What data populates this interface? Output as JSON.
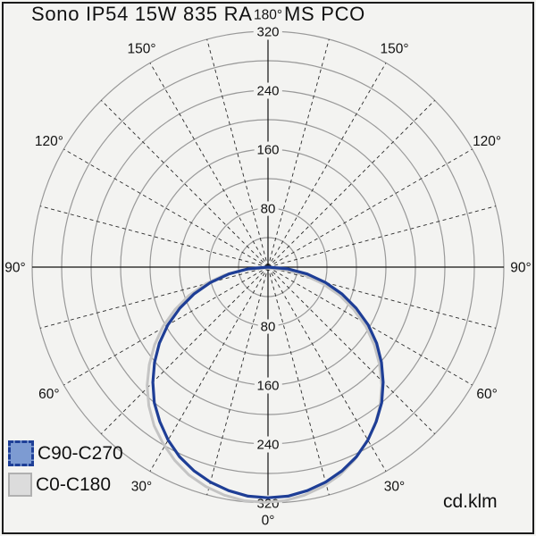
{
  "header": {
    "title_left": "Sono IP54 15W 835 RA",
    "title_right": "MS PCO",
    "title_full": "Sono IP54 15W 835 RA MS PCO"
  },
  "unit_label": "cd.klm",
  "legend": {
    "items": [
      {
        "label": "C90-C270",
        "fill": "#7d9bd2",
        "border": "#1e3f97",
        "border_style": "dashed"
      },
      {
        "label": "C0-C180",
        "fill": "#dcdcdc",
        "border": "#b0b0b0",
        "border_style": "solid"
      }
    ]
  },
  "chart_data": {
    "type": "polar",
    "subtype": "luminous-intensity-distribution",
    "title": "Sono IP54 15W 835 RA MS PCO",
    "unit": "cd.klm",
    "radial_axis": {
      "min": 0,
      "max": 320,
      "circle_step": 40,
      "labeled_values": [
        80,
        160,
        240,
        320
      ]
    },
    "angle_axis": {
      "spoke_step_deg": 15,
      "zero_position": "bottom",
      "mirrored_labels": true,
      "labels": [
        {
          "angle": 0,
          "text": "0°"
        },
        {
          "angle": 30,
          "text": "30°"
        },
        {
          "angle": 60,
          "text": "60°"
        },
        {
          "angle": 90,
          "text": "90°"
        },
        {
          "angle": 120,
          "text": "120°"
        },
        {
          "angle": 150,
          "text": "150°"
        },
        {
          "angle": 180,
          "text": "180°"
        }
      ]
    },
    "series": [
      {
        "name": "C0-C180",
        "color": "#c4c4c4",
        "width": 3,
        "gamma_step_deg": 5,
        "gamma_range": [
          -90,
          90
        ],
        "values_cd_per_klm": [
          318,
          317,
          313,
          307,
          299,
          288,
          275,
          261,
          244,
          225,
          204,
          182,
          159,
          134,
          109,
          82,
          55,
          28,
          0
        ],
        "dx": -4,
        "dy": 1
      },
      {
        "name": "C90-C270",
        "color": "#1e3e96",
        "width": 3.2,
        "gamma_step_deg": 5,
        "gamma_range": [
          -90,
          90
        ],
        "values_cd_per_klm": [
          313,
          312,
          308,
          302,
          294,
          284,
          271,
          256,
          240,
          221,
          201,
          180,
          157,
          132,
          107,
          81,
          54,
          27,
          0
        ],
        "dx": 0,
        "dy": 0
      }
    ],
    "colors": {
      "grid_circle": "#999999",
      "spoke": "#2a2a2a",
      "axis": "#111111",
      "background": "#f3f3f1",
      "text": "#111111"
    }
  }
}
